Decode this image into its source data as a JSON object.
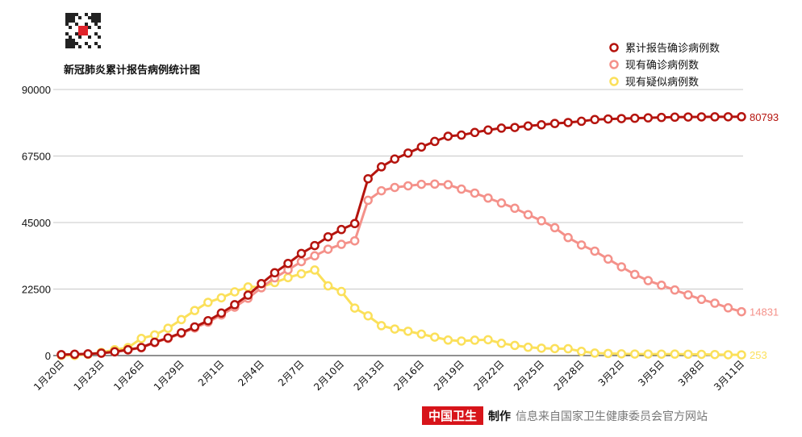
{
  "footer": {
    "brand": "中国卫生",
    "made": "制作",
    "source": "信息来自国家卫生健康委员会官方网站"
  },
  "colors": {
    "cumulative": "#b5140e",
    "current": "#f4918a",
    "suspected": "#fbe05a"
  },
  "chart_data": {
    "type": "line",
    "title": "新冠肺炎累计报告病例统计图",
    "xlabel": "",
    "ylabel": "",
    "ylim": [
      0,
      90000
    ],
    "yticks": [
      0,
      22500,
      45000,
      67500,
      90000
    ],
    "grid": true,
    "legend_position": "top-right",
    "x": [
      "1月20日",
      "1月21日",
      "1月22日",
      "1月23日",
      "1月24日",
      "1月25日",
      "1月26日",
      "1月27日",
      "1月28日",
      "1月29日",
      "1月30日",
      "1月31日",
      "2月1日",
      "2月2日",
      "2月3日",
      "2月4日",
      "2月5日",
      "2月6日",
      "2月7日",
      "2月8日",
      "2月9日",
      "2月10日",
      "2月11日",
      "2月12日",
      "2月13日",
      "2月14日",
      "2月15日",
      "2月16日",
      "2月17日",
      "2月18日",
      "2月19日",
      "2月20日",
      "2月21日",
      "2月22日",
      "2月23日",
      "2月24日",
      "2月25日",
      "2月26日",
      "2月27日",
      "2月28日",
      "2月29日",
      "3月1日",
      "3月2日",
      "3月3日",
      "3月4日",
      "3月5日",
      "3月6日",
      "3月7日",
      "3月8日",
      "3月9日",
      "3月10日",
      "3月11日"
    ],
    "xtick_labels": [
      "1月20日",
      "1月23日",
      "1月26日",
      "1月29日",
      "2月1日",
      "2月4日",
      "2月7日",
      "2月10日",
      "2月13日",
      "2月16日",
      "2月19日",
      "2月22日",
      "2月25日",
      "2月28日",
      "3月2日",
      "3月5日",
      "3月8日",
      "3月11日"
    ],
    "series": [
      {
        "name": "现有疑似病例数",
        "key": "suspected",
        "end_label": "253",
        "values": [
          54,
          37,
          393,
          1072,
          1965,
          2684,
          5794,
          6973,
          9239,
          12167,
          15238,
          17988,
          19544,
          21558,
          23214,
          23260,
          24702,
          26359,
          27657,
          28942,
          23589,
          21675,
          16067,
          13435,
          10109,
          8969,
          8228,
          7264,
          6242,
          5248,
          4922,
          5206,
          5365,
          4148,
          3434,
          2824,
          2491,
          2358,
          2308,
          1418,
          851,
          715,
          587,
          520,
          522,
          482,
          502,
          458,
          421,
          351,
          285,
          253
        ]
      },
      {
        "name": "现有确诊病例数",
        "key": "current",
        "end_label": "14831",
        "values": [
          291,
          431,
          546,
          785,
          1205,
          1880,
          2614,
          4363,
          5784,
          7468,
          9308,
          11289,
          13748,
          16369,
          19381,
          22942,
          26302,
          28985,
          31774,
          33738,
          35982,
          37626,
          38800,
          52526,
          55748,
          56873,
          57416,
          57934,
          58016,
          57805,
          56303,
          54965,
          53284,
          51606,
          49824,
          47672,
          45604,
          43258,
          39919,
          37414,
          35329,
          32652,
          30004,
          27433,
          25352,
          23784,
          22177,
          20533,
          19016,
          17721,
          16145,
          14831
        ]
      },
      {
        "name": "累计报告确诊病例数",
        "key": "cumulative",
        "end_label": "80793",
        "values": [
          291,
          440,
          571,
          830,
          1287,
          1975,
          2744,
          4515,
          5974,
          7711,
          9692,
          11791,
          14380,
          17205,
          20438,
          24324,
          28018,
          31161,
          34546,
          37198,
          40171,
          42638,
          44653,
          59804,
          63851,
          66492,
          68500,
          70548,
          72436,
          74185,
          74576,
          75465,
          76288,
          76936,
          77150,
          77658,
          78064,
          78497,
          78824,
          79251,
          79824,
          80026,
          80151,
          80270,
          80409,
          80552,
          80651,
          80695,
          80735,
          80754,
          80778,
          80793
        ]
      }
    ],
    "legend": [
      "累计报告确诊病例数",
      "现有确诊病例数",
      "现有疑似病例数"
    ]
  }
}
